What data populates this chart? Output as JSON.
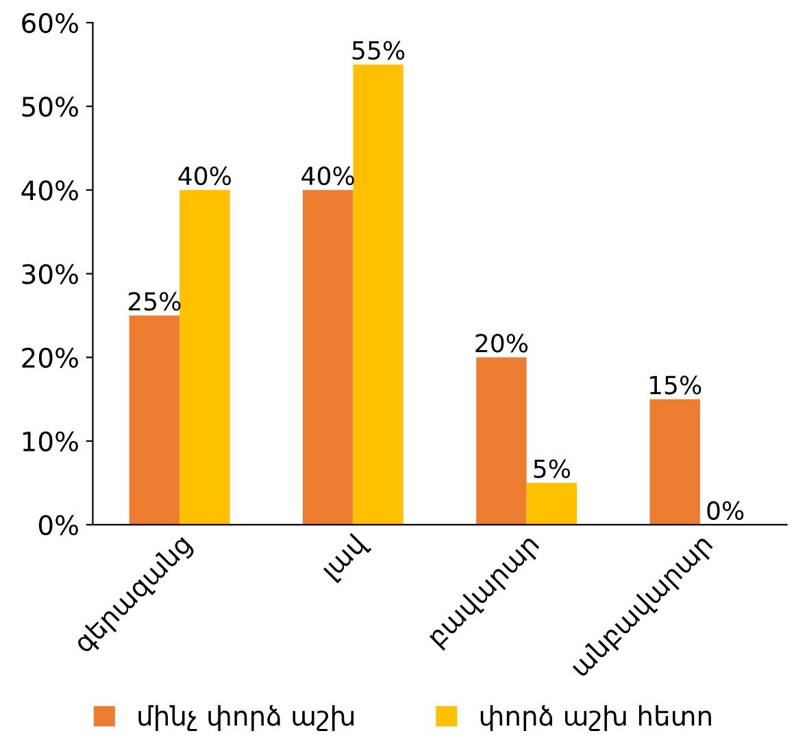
{
  "chart_data": {
    "type": "bar",
    "categories": [
      "գերազանց",
      "լավ",
      "բավարար",
      "անբավարար"
    ],
    "series": [
      {
        "name": "մինչ փորձ աշխ",
        "color": "#ed7d31",
        "values": [
          25,
          40,
          20,
          15
        ],
        "value_labels": [
          "25%",
          "40%",
          "20%",
          "15%"
        ]
      },
      {
        "name": "փորձ աշխ հետո",
        "color": "#ffc000",
        "values": [
          40,
          55,
          5,
          0
        ],
        "value_labels": [
          "40%",
          "55%",
          "5%",
          "0%"
        ]
      }
    ],
    "ylim": [
      0,
      60
    ],
    "yticks": [
      {
        "value": 0,
        "label": "0%"
      },
      {
        "value": 10,
        "label": "10%"
      },
      {
        "value": 20,
        "label": "20%"
      },
      {
        "value": 30,
        "label": "30%"
      },
      {
        "value": 40,
        "label": "40%"
      },
      {
        "value": 50,
        "label": "50%"
      },
      {
        "value": 60,
        "label": "60%"
      }
    ],
    "grid": false,
    "legend": "bottom"
  }
}
